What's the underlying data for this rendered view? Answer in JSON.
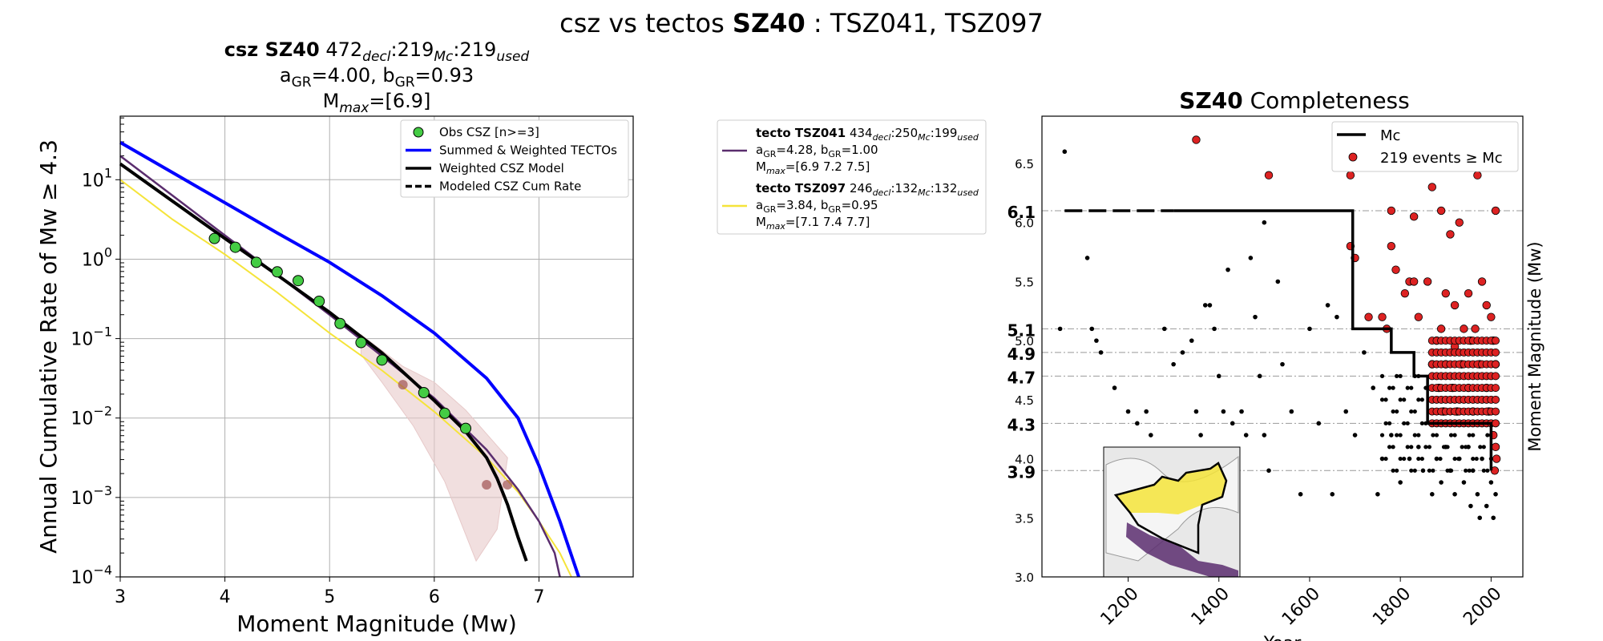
{
  "page_title": {
    "prefix": "csz vs tectos",
    "zone": "SZ40",
    "suffix": ": TSZ041, TSZ097"
  },
  "left_title": {
    "line1_name": "csz SZ40",
    "line1_counts": [
      "472",
      "219",
      "219"
    ],
    "line1_subs": [
      "decl",
      "Mc",
      "used"
    ],
    "line2": "a<sub>GR</sub>=4.00,  b<sub>GR</sub>=0.93",
    "line3": "M<sub>max</sub>=[6.9]"
  },
  "right_title": {
    "zone": "SZ40",
    "text": "Completeness"
  },
  "colors": {
    "summed": "#0000ff",
    "csz": "#000000",
    "obs": "#44cc44",
    "tsz041": "#5a2d6e",
    "tsz097": "#f5e43a",
    "band": "#e7c9c9",
    "brown_points": "#a05050",
    "events": "#dd2222"
  },
  "chart_data": [
    {
      "type": "line",
      "title": "csz SZ40",
      "xlabel": "Moment Magnitude (Mw)",
      "ylabel": "Annual Cumulative Rate of Mw ≥ 4.3",
      "xlim": [
        3,
        7.9
      ],
      "ylim_log10": [
        -4,
        1.8
      ],
      "yscale": "log",
      "grid": true,
      "legend_position": "top-right",
      "x_ticks": [
        "3",
        "4",
        "5",
        "6",
        "7"
      ],
      "y_ticks": [
        "-4",
        "-3",
        "-2",
        "-1",
        "0",
        "1"
      ],
      "series": [
        {
          "name": "Summed & Weighted TECTOs",
          "x": [
            3.0,
            3.5,
            4.0,
            4.5,
            5.0,
            5.5,
            6.0,
            6.5,
            6.8,
            7.0,
            7.2,
            7.38
          ],
          "y": [
            1.47,
            1.09,
            0.71,
            0.33,
            -0.04,
            -0.46,
            -0.93,
            -1.5,
            -2.0,
            -2.6,
            -3.3,
            -4.0
          ]
        },
        {
          "name": "Weighted CSZ Model",
          "x": [
            3.0,
            3.5,
            4.0,
            4.5,
            5.0,
            5.5,
            6.0,
            6.3,
            6.5,
            6.6,
            6.7,
            6.8,
            6.88
          ],
          "y": [
            1.2,
            0.73,
            0.26,
            -0.2,
            -0.67,
            -1.18,
            -1.78,
            -2.17,
            -2.5,
            -2.76,
            -3.09,
            -3.5,
            -3.8
          ]
        },
        {
          "name": "Modeled CSZ Cum Rate",
          "x": [],
          "y": []
        },
        {
          "name": "tecto TSZ041",
          "x": [
            3.0,
            3.5,
            4.0,
            4.5,
            5.0,
            5.5,
            6.0,
            6.5,
            6.8,
            7.0,
            7.15,
            7.2
          ],
          "y": [
            1.3,
            0.8,
            0.3,
            -0.2,
            -0.7,
            -1.22,
            -1.75,
            -2.4,
            -2.9,
            -3.3,
            -3.7,
            -4.0
          ]
        },
        {
          "name": "tecto TSZ097",
          "x": [
            3.0,
            3.5,
            4.0,
            4.5,
            5.0,
            5.5,
            6.0,
            6.5,
            6.8,
            7.0,
            7.2,
            7.31
          ],
          "y": [
            1.0,
            0.5,
            0.06,
            -0.42,
            -0.93,
            -1.4,
            -1.92,
            -2.5,
            -2.93,
            -3.3,
            -3.7,
            -4.0
          ]
        }
      ],
      "observed": {
        "name": "Obs CSZ [n>=3]",
        "x": [
          3.9,
          4.1,
          4.3,
          4.5,
          4.7,
          4.9,
          5.1,
          5.3,
          5.5,
          5.9,
          6.1,
          6.3
        ],
        "y": [
          0.26,
          0.15,
          -0.04,
          -0.16,
          -0.27,
          -0.53,
          -0.81,
          -1.05,
          -1.27,
          -1.68,
          -1.94,
          -2.13
        ]
      },
      "uncertain_points": {
        "x": [
          5.7,
          6.5,
          6.7
        ],
        "y": [
          -1.58,
          -2.84,
          -2.84
        ]
      },
      "band": {
        "x": [
          5.3,
          5.7,
          6.0,
          6.3,
          6.5,
          6.7,
          6.6,
          6.4,
          6.1,
          5.8,
          5.5,
          5.3
        ],
        "y": [
          -0.95,
          -1.35,
          -1.55,
          -1.9,
          -2.2,
          -2.5,
          -3.4,
          -3.8,
          -2.8,
          -2.1,
          -1.55,
          -1.2
        ]
      }
    },
    {
      "type": "scatter",
      "title": "SZ40 Completeness",
      "xlabel": "Year",
      "ylabel": "Moment Magnitude (Mw)",
      "xlim": [
        1010,
        2070
      ],
      "ylim": [
        3.0,
        6.9
      ],
      "legend_position": "top-right",
      "x_ticks": [
        "1200",
        "1400",
        "1600",
        "1800",
        "2000"
      ],
      "y_ticks": [
        "3.0",
        "3.5",
        "4.0",
        "4.5",
        "5.0",
        "5.5",
        "6.0",
        "6.5"
      ],
      "completeness_levels": [
        "6.1",
        "5.1",
        "4.9",
        "4.7",
        "4.3",
        "3.9"
      ],
      "mc_step": {
        "name": "Mc",
        "x": [
          1300,
          1695,
          1695,
          1780,
          1780,
          1830,
          1830,
          1860,
          1860,
          2000,
          2000
        ],
        "y": [
          6.1,
          6.1,
          5.1,
          5.1,
          4.9,
          4.9,
          4.7,
          4.7,
          4.3,
          4.3,
          3.9
        ]
      },
      "mc_dashed": {
        "x": [
          1060,
          1300
        ],
        "y": [
          6.1,
          6.1
        ]
      },
      "events_legend": "219 events ≥ Mc",
      "events_large": [
        [
          1350,
          6.7
        ],
        [
          1510,
          6.4
        ],
        [
          1690,
          6.4
        ],
        [
          1870,
          6.3
        ],
        [
          1970,
          6.4
        ],
        [
          2010,
          6.1
        ],
        [
          1780,
          6.1
        ],
        [
          1830,
          6.05
        ],
        [
          1890,
          6.1
        ],
        [
          1930,
          6.0
        ],
        [
          1910,
          5.9
        ],
        [
          1690,
          5.8
        ],
        [
          1700,
          5.7
        ],
        [
          1780,
          5.8
        ],
        [
          1790,
          5.6
        ],
        [
          1820,
          5.5
        ],
        [
          1830,
          5.5
        ],
        [
          1810,
          5.4
        ],
        [
          1860,
          5.5
        ],
        [
          1900,
          5.4
        ],
        [
          1920,
          5.3
        ],
        [
          1950,
          5.4
        ],
        [
          1760,
          5.2
        ],
        [
          1730,
          5.2
        ],
        [
          1770,
          5.1
        ],
        [
          1840,
          5.2
        ],
        [
          1980,
          5.5
        ],
        [
          1990,
          5.3
        ],
        [
          2000,
          5.2
        ],
        [
          1890,
          5.1
        ],
        [
          1940,
          5.1
        ],
        [
          1965,
          5.1
        ],
        [
          1880,
          5.0
        ],
        [
          1920,
          4.95
        ],
        [
          1955,
          5.0
        ],
        [
          2005,
          5.0
        ],
        [
          1870,
          4.8
        ],
        [
          1900,
          4.8
        ],
        [
          1935,
          4.8
        ],
        [
          1975,
          4.8
        ],
        [
          2010,
          4.8
        ],
        [
          1885,
          4.6
        ],
        [
          1915,
          4.6
        ],
        [
          1950,
          4.6
        ],
        [
          1990,
          4.6
        ],
        [
          1895,
          4.4
        ],
        [
          1925,
          4.4
        ],
        [
          1960,
          4.4
        ],
        [
          1995,
          4.4
        ],
        [
          2005,
          4.2
        ],
        [
          2010,
          4.1
        ],
        [
          2012,
          4.0
        ],
        [
          2008,
          3.9
        ]
      ],
      "events_small": [
        [
          1060,
          6.6
        ],
        [
          1050,
          5.1
        ],
        [
          1110,
          5.7
        ],
        [
          1120,
          5.1
        ],
        [
          1130,
          5.0
        ],
        [
          1140,
          4.9
        ],
        [
          1170,
          4.6
        ],
        [
          1200,
          4.4
        ],
        [
          1220,
          4.3
        ],
        [
          1240,
          4.4
        ],
        [
          1250,
          4.2
        ],
        [
          1280,
          5.1
        ],
        [
          1300,
          4.8
        ],
        [
          1320,
          4.9
        ],
        [
          1340,
          5.0
        ],
        [
          1350,
          4.4
        ],
        [
          1360,
          4.2
        ],
        [
          1370,
          5.3
        ],
        [
          1380,
          5.3
        ],
        [
          1390,
          5.1
        ],
        [
          1400,
          4.7
        ],
        [
          1410,
          4.4
        ],
        [
          1420,
          5.6
        ],
        [
          1430,
          4.3
        ],
        [
          1450,
          4.4
        ],
        [
          1460,
          4.2
        ],
        [
          1470,
          5.7
        ],
        [
          1480,
          5.2
        ],
        [
          1490,
          4.7
        ],
        [
          1500,
          4.2
        ],
        [
          1500,
          6.0
        ],
        [
          1510,
          3.9
        ],
        [
          1530,
          5.5
        ],
        [
          1540,
          4.8
        ],
        [
          1560,
          4.4
        ],
        [
          1580,
          3.7
        ],
        [
          1600,
          5.1
        ],
        [
          1620,
          4.3
        ],
        [
          1640,
          5.3
        ],
        [
          1650,
          3.7
        ],
        [
          1660,
          5.2
        ],
        [
          1680,
          4.4
        ],
        [
          1700,
          4.2
        ],
        [
          1720,
          4.9
        ],
        [
          1740,
          4.6
        ],
        [
          1750,
          3.7
        ],
        [
          1760,
          4.0
        ],
        [
          1780,
          4.2
        ],
        [
          1800,
          3.8
        ],
        [
          1820,
          4.0
        ],
        [
          1840,
          4.1
        ],
        [
          1850,
          3.9
        ],
        [
          1870,
          3.7
        ],
        [
          1880,
          4.0
        ],
        [
          1890,
          3.8
        ],
        [
          1900,
          4.1
        ],
        [
          1910,
          3.9
        ],
        [
          1920,
          3.7
        ],
        [
          1930,
          4.0
        ],
        [
          1940,
          3.8
        ],
        [
          1950,
          4.1
        ],
        [
          1960,
          3.9
        ],
        [
          1970,
          3.7
        ],
        [
          1980,
          4.0
        ],
        [
          1990,
          3.6
        ],
        [
          2000,
          3.8
        ],
        [
          2005,
          3.5
        ],
        [
          2010,
          3.7
        ],
        [
          1955,
          3.6
        ],
        [
          1975,
          3.5
        ]
      ]
    }
  ],
  "legend_left": [
    {
      "label": "Obs CSZ [n>=3]",
      "kind": "marker"
    },
    {
      "label": "Summed & Weighted TECTOs",
      "kind": "line"
    },
    {
      "label": "Weighted CSZ Model",
      "kind": "line"
    },
    {
      "label": "Modeled CSZ Cum Rate",
      "kind": "dashed"
    }
  ],
  "legend_tectos": [
    {
      "name": "tecto TSZ041",
      "counts": [
        "434",
        "250",
        "199"
      ],
      "subs": [
        "decl",
        "Mc",
        "used"
      ],
      "ab": "a<sub>GR</sub>=4.28,  b<sub>GR</sub>=1.00",
      "mmax": "M<sub>max</sub>=[6.9 7.2 7.5]"
    },
    {
      "name": "tecto TSZ097",
      "counts": [
        "246",
        "132",
        "132"
      ],
      "subs": [
        "decl",
        "Mc",
        "used"
      ],
      "ab": "a<sub>GR</sub>=3.84,  b<sub>GR</sub>=0.95",
      "mmax": "M<sub>max</sub>=[7.1 7.4 7.7]"
    }
  ]
}
